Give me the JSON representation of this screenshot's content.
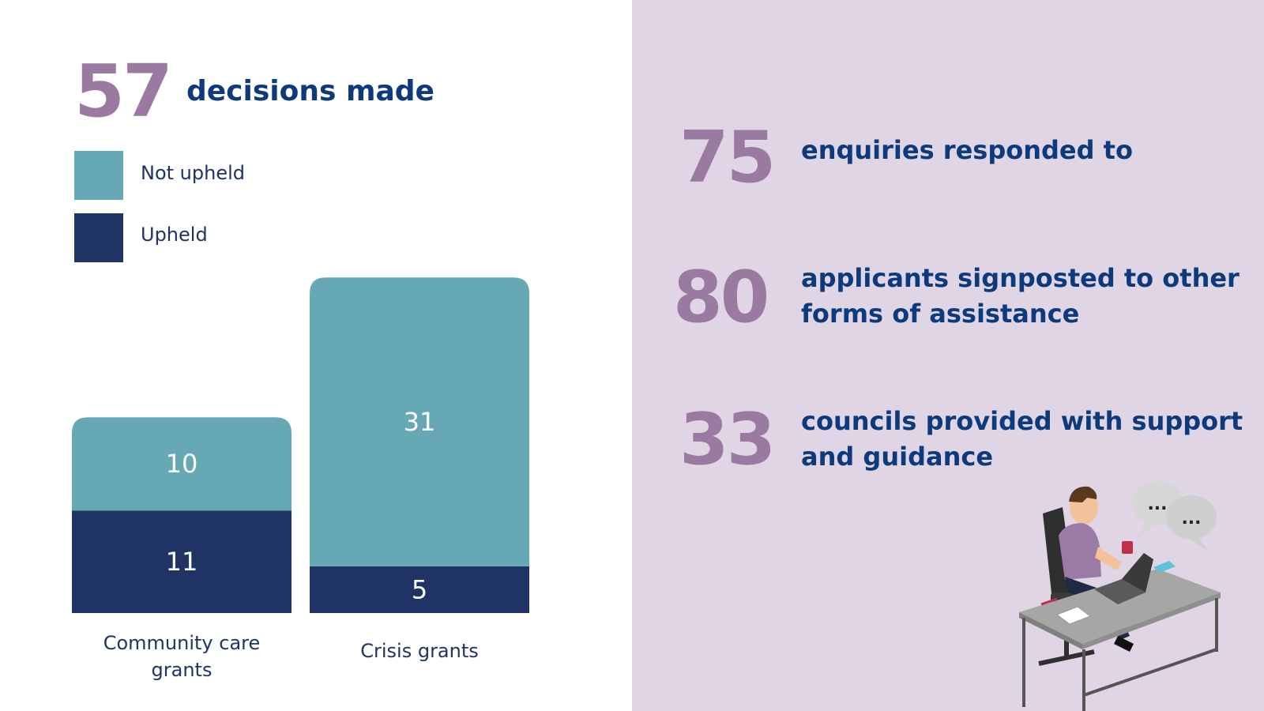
{
  "headline": {
    "number": "57",
    "text": "decisions made"
  },
  "legend": [
    {
      "label": "Not upheld",
      "color": "#66a9b5"
    },
    {
      "label": "Upheld",
      "color": "#1f3464"
    }
  ],
  "chart_data": {
    "type": "bar",
    "stacked": true,
    "categories": [
      "Community care grants",
      "Crisis grants"
    ],
    "category_lines": [
      [
        "Community care",
        "grants"
      ],
      [
        "Crisis grants"
      ]
    ],
    "series": [
      {
        "name": "Upheld",
        "values": [
          11,
          5
        ],
        "color": "#1f3464"
      },
      {
        "name": "Not upheld",
        "values": [
          10,
          31
        ],
        "color": "#66a9b5"
      }
    ],
    "title": "",
    "xlabel": "",
    "ylabel": "",
    "grid": false,
    "legend_position": "top-left"
  },
  "stats": [
    {
      "number": "75",
      "text": "enquiries responded to"
    },
    {
      "number": "80",
      "text": "applicants signposted to other forms of assistance"
    },
    {
      "number": "33",
      "text": "councils provided with support and guidance"
    }
  ],
  "illustration": {
    "icon": "person-at-desk-laptop-illustration",
    "speech_bubbles": [
      "...",
      "..."
    ]
  },
  "colors": {
    "accent_purple": "#9a7aa0",
    "heading_blue": "#0d3a7d",
    "panel_lavender": "#e0d5e4",
    "upheld": "#1f3464",
    "not_upheld": "#66a9b5"
  }
}
